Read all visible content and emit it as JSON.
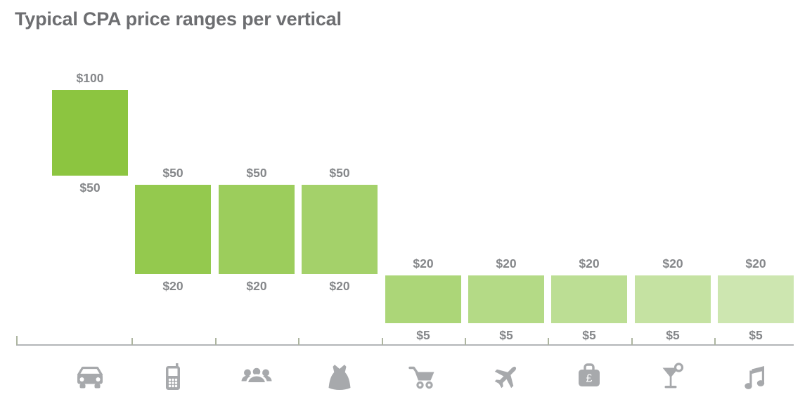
{
  "title": "Typical CPA price ranges per vertical",
  "theme": {
    "background": "#FFFFFF",
    "title_color": "#6D6E71",
    "label_color": "#85878A",
    "axis_color": "#B3B6B8",
    "tick_color": "#ADB5A0",
    "icon_color": "#A7A9AC"
  },
  "chart_data": {
    "type": "bar",
    "subtype": "floating-range-columns",
    "title": "Typical CPA price ranges per vertical",
    "axis": {
      "gridlines": false,
      "value_axis_hidden": true,
      "ticks": "category-boundaries",
      "baseline": true
    },
    "categories": [
      "car",
      "mobile-phone",
      "people-group",
      "dress",
      "shopping-cart",
      "airplane",
      "briefcase-pound",
      "cocktail",
      "music-notes"
    ],
    "bars": [
      {
        "category": "car",
        "icon": "car-icon",
        "min": 50,
        "max": 100,
        "min_label": "$50",
        "max_label": "$100",
        "color": "#8CC540"
      },
      {
        "category": "mobile-phone",
        "icon": "mobile-phone-icon",
        "min": 20,
        "max": 50,
        "min_label": "$20",
        "max_label": "$50",
        "color": "#94C94E"
      },
      {
        "category": "people-group",
        "icon": "people-group-icon",
        "min": 20,
        "max": 50,
        "min_label": "$20",
        "max_label": "$50",
        "color": "#9CCD5C"
      },
      {
        "category": "dress",
        "icon": "dress-icon",
        "min": 20,
        "max": 50,
        "min_label": "$20",
        "max_label": "$50",
        "color": "#A4D16A"
      },
      {
        "category": "shopping-cart",
        "icon": "shopping-cart-icon",
        "min": 5,
        "max": 20,
        "min_label": "$5",
        "max_label": "$20",
        "color": "#ACD678"
      },
      {
        "category": "airplane",
        "icon": "airplane-icon",
        "min": 5,
        "max": 20,
        "min_label": "$5",
        "max_label": "$20",
        "color": "#B4DA86"
      },
      {
        "category": "briefcase-pound",
        "icon": "briefcase-pound-icon",
        "min": 5,
        "max": 20,
        "min_label": "$5",
        "max_label": "$20",
        "color": "#BCDE94"
      },
      {
        "category": "cocktail",
        "icon": "cocktail-icon",
        "min": 5,
        "max": 20,
        "min_label": "$5",
        "max_label": "$20",
        "color": "#C5E2A2"
      },
      {
        "category": "music-notes",
        "icon": "music-notes-icon",
        "min": 5,
        "max": 20,
        "min_label": "$5",
        "max_label": "$20",
        "color": "#CDE6B0"
      }
    ]
  }
}
